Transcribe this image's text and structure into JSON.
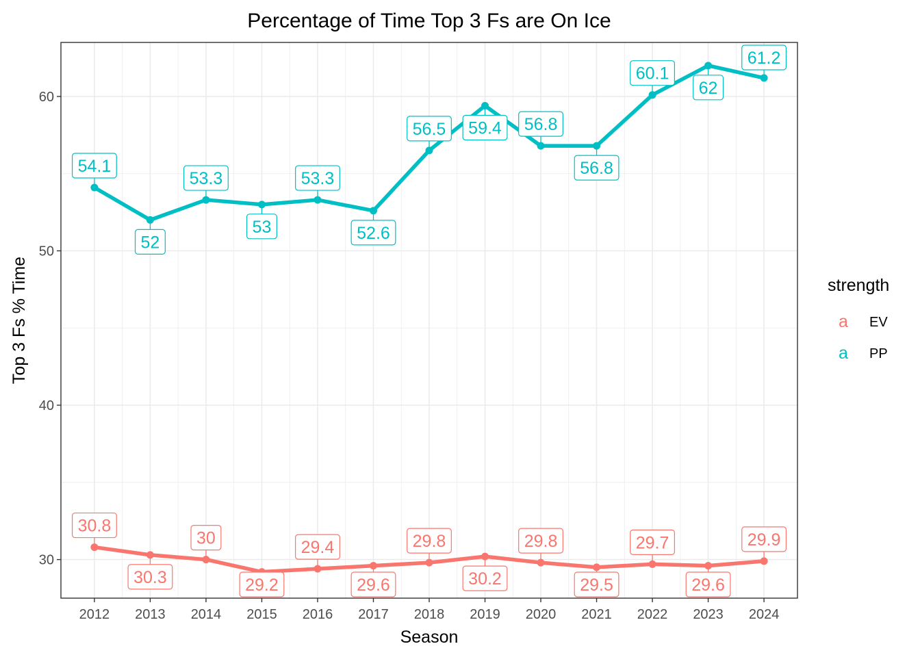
{
  "chart_data": {
    "type": "line",
    "title": "Percentage of Time Top 3 Fs are On Ice",
    "xlabel": "Season",
    "ylabel": "Top 3 Fs % Time",
    "x": [
      2012,
      2013,
      2014,
      2015,
      2016,
      2017,
      2018,
      2019,
      2020,
      2021,
      2022,
      2023,
      2024
    ],
    "xlim": [
      2011.4,
      2024.6
    ],
    "ylim": [
      27.5,
      63.5
    ],
    "yticks": [
      30,
      40,
      50,
      60
    ],
    "grid": true,
    "legend": {
      "title": "strength",
      "position": "right",
      "key_glyph": "a"
    },
    "series": [
      {
        "name": "EV",
        "color": "#F8766D",
        "values": [
          30.8,
          30.3,
          30.0,
          29.2,
          29.4,
          29.6,
          29.8,
          30.2,
          29.8,
          29.5,
          29.7,
          29.6,
          29.9
        ],
        "labels": [
          "30.8",
          "30.3",
          "30",
          "29.2",
          "29.4",
          "29.6",
          "29.8",
          "30.2",
          "29.8",
          "29.5",
          "29.7",
          "29.6",
          "29.9"
        ]
      },
      {
        "name": "PP",
        "color": "#00BFC4",
        "values": [
          54.1,
          52.0,
          53.3,
          53.0,
          53.3,
          52.6,
          56.5,
          59.4,
          56.8,
          56.8,
          60.1,
          62.0,
          61.2
        ],
        "labels": [
          "54.1",
          "52",
          "53.3",
          "53",
          "53.3",
          "52.6",
          "56.5",
          "59.4",
          "56.8",
          "56.8",
          "60.1",
          "62",
          "61.2"
        ]
      }
    ]
  }
}
